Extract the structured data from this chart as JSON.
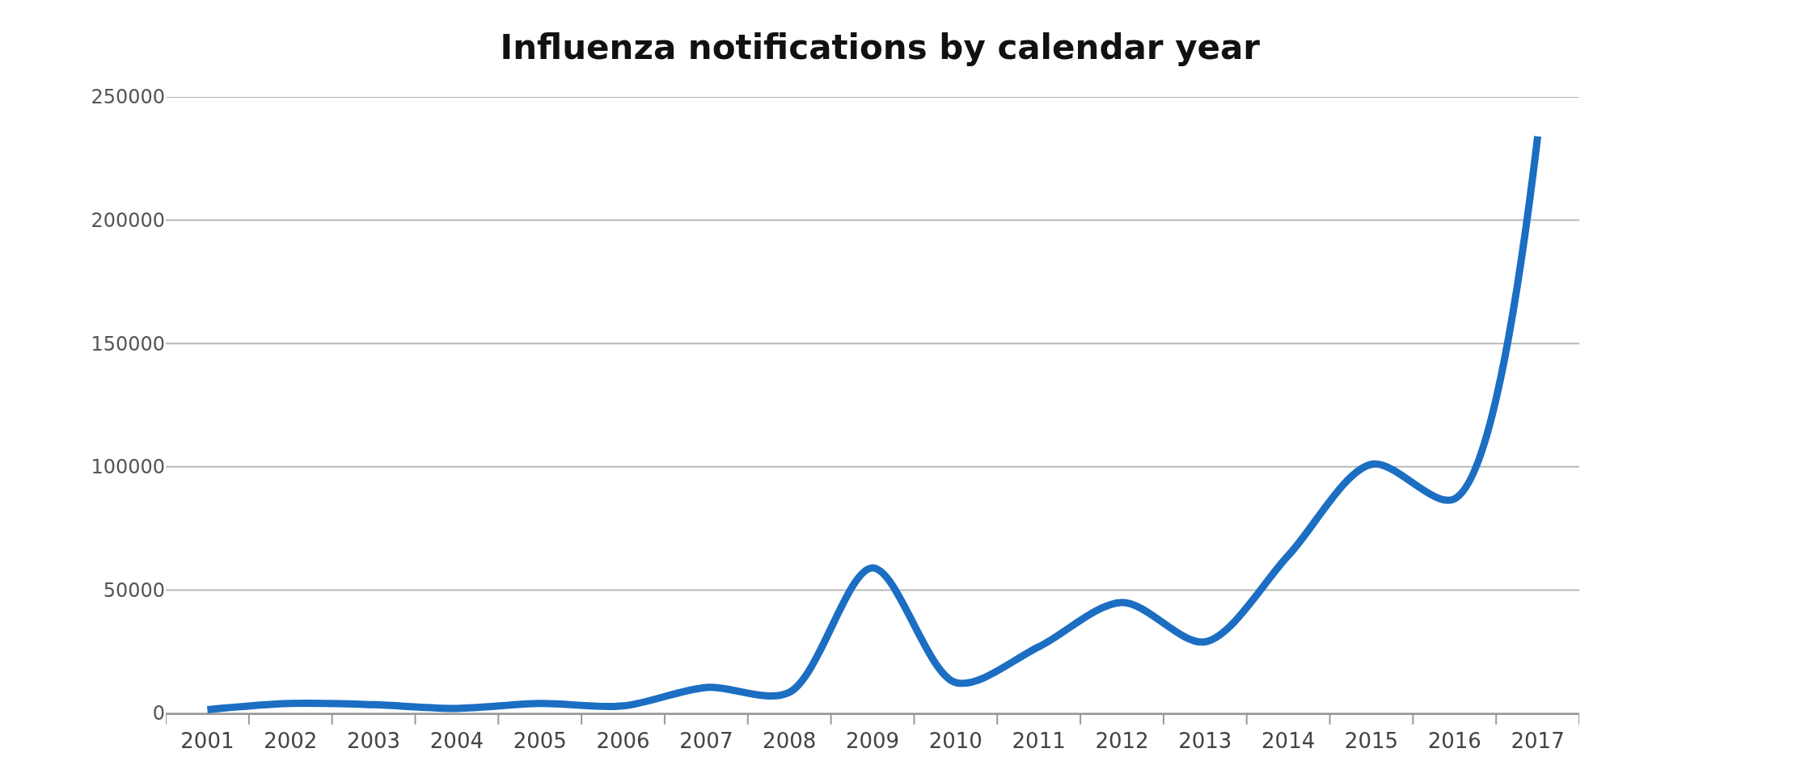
{
  "chart_data": {
    "type": "line",
    "title": "Influenza notifications by calendar year",
    "categories": [
      "2001",
      "2002",
      "2003",
      "2004",
      "2005",
      "2006",
      "2007",
      "2008",
      "2009",
      "2010",
      "2011",
      "2012",
      "2013",
      "2014",
      "2015",
      "2016",
      "2017"
    ],
    "series": [
      {
        "color": "#1b6ec2",
        "values": [
          1500,
          4000,
          3500,
          2000,
          4000,
          3000,
          10500,
          8500,
          59000,
          12500,
          27000,
          45000,
          29000,
          64000,
          101000,
          87000,
          234000
        ]
      }
    ],
    "ylim": [
      0,
      250000
    ],
    "yticks": [
      0,
      50000,
      100000,
      150000,
      200000,
      250000
    ],
    "grid": "y",
    "marker": "none",
    "line_style": "solid"
  }
}
